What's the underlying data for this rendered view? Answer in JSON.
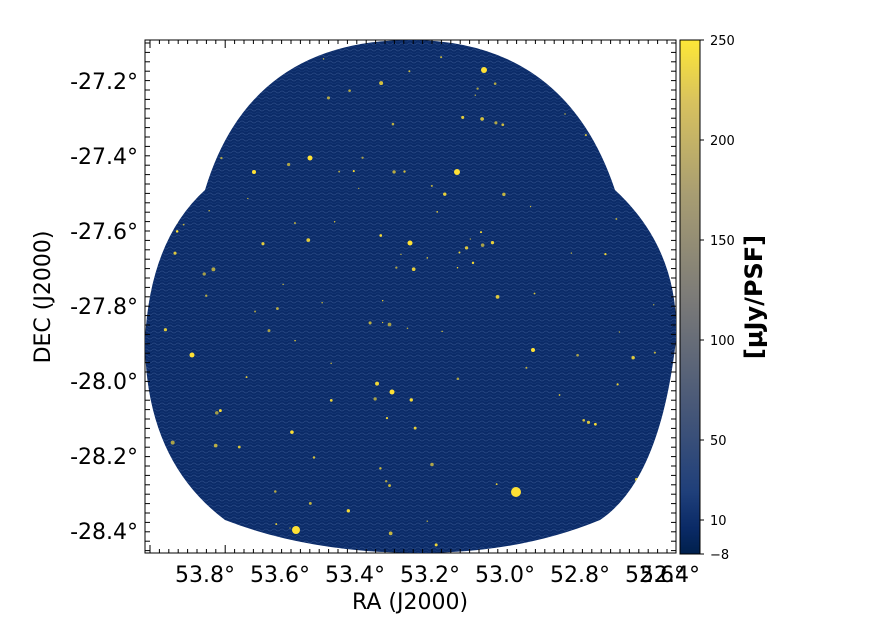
{
  "image": {
    "description_colors": {
      "background": "#0a2a66",
      "noise": "#1e3d7a",
      "source": "#ffe135"
    }
  },
  "axes": {
    "xlabel": "RA (J2000)",
    "ylabel": "DEC (J2000)",
    "x_ticks": [
      "53.8°",
      "53.6°",
      "53.4°",
      "53.2°",
      "53.0°",
      "52.8°",
      "52.6°",
      "52.4°"
    ],
    "y_ticks": [
      "-27.2°",
      "-27.4°",
      "-27.6°",
      "-27.8°",
      "-28.0°",
      "-28.2°",
      "-28.4°"
    ]
  },
  "colorbar": {
    "label": "[μJy/PSF]",
    "ticks": [
      "250",
      "200",
      "150",
      "100",
      "50",
      "10",
      "−8"
    ],
    "colors": [
      "#00204d",
      "#2a3f6e",
      "#575d6d",
      "#7c7b78",
      "#a59c74",
      "#d3c164",
      "#fde737"
    ]
  }
}
